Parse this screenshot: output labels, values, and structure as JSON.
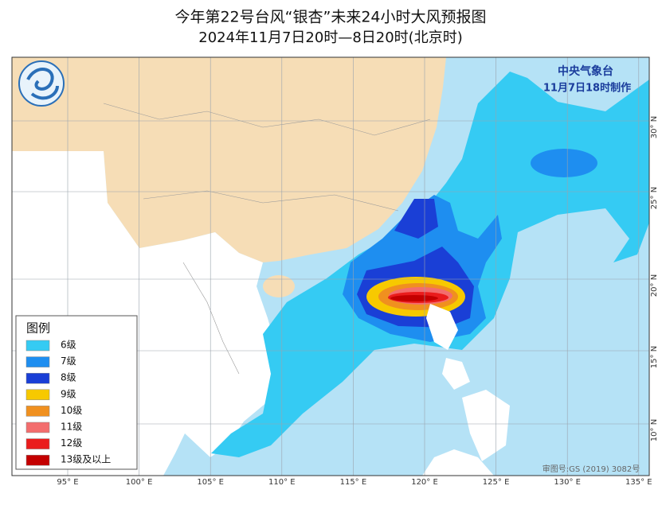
{
  "header": {
    "title": "今年第22号台风“银杏”未来24小时大风预报图",
    "subtitle": "2024年11月7日20时—8日20时(北京时)"
  },
  "agency": {
    "name": "中央气象台",
    "issued": "11月7日18时制作"
  },
  "legend": {
    "title": "图例",
    "items": [
      {
        "label": "6级",
        "color": "#35cbf3"
      },
      {
        "label": "7级",
        "color": "#1e8ef0"
      },
      {
        "label": "8级",
        "color": "#1a3fd6"
      },
      {
        "label": "9级",
        "color": "#f7c900"
      },
      {
        "label": "10级",
        "color": "#f0901f"
      },
      {
        "label": "11级",
        "color": "#f36d6d"
      },
      {
        "label": "12级",
        "color": "#ea1c1c"
      },
      {
        "label": "13级及以上",
        "color": "#c40000"
      }
    ]
  },
  "longitude_labels": [
    "95° E",
    "100° E",
    "105° E",
    "110° E",
    "115° E",
    "120° E",
    "125° E",
    "130° E",
    "135° E"
  ],
  "latitude_labels": [
    "30° N",
    "25° N",
    "20° N",
    "15° N",
    "10° N"
  ],
  "footer": {
    "approval": "审图号:GS (2019) 3082号"
  }
}
